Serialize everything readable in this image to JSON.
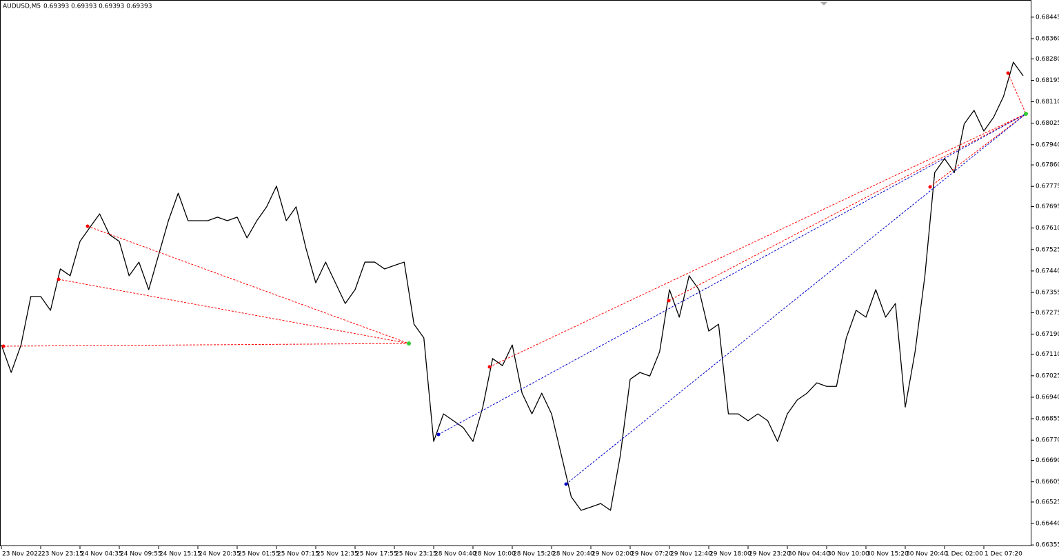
{
  "chart_data": {
    "type": "line",
    "title": "AUDUSD,M5",
    "subtitle": "0.69393 0.69393 0.69393 0.69393",
    "color": "#000000",
    "categories": [
      "23 Nov 2022",
      null,
      null,
      null,
      "23 Nov 23:15",
      null,
      null,
      null,
      "24 Nov 04:35",
      null,
      null,
      null,
      "24 Nov 09:55",
      null,
      null,
      null,
      "24 Nov 15:15",
      null,
      null,
      null,
      "24 Nov 20:35",
      null,
      null,
      null,
      "25 Nov 01:55",
      null,
      null,
      null,
      "25 Nov 07:15",
      null,
      null,
      null,
      "25 Nov 12:35",
      null,
      null,
      null,
      "25 Nov 17:55",
      null,
      null,
      null,
      "25 Nov 23:15",
      null,
      null,
      null,
      "28 Nov 04:40",
      null,
      null,
      null,
      "28 Nov 10:00",
      null,
      null,
      null,
      "28 Nov 15:20",
      null,
      null,
      null,
      "28 Nov 20:40",
      null,
      null,
      null,
      "29 Nov 02:00",
      null,
      null,
      null,
      "29 Nov 07:20",
      null,
      null,
      null,
      "29 Nov 12:40",
      null,
      null,
      null,
      "29 Nov 18:00",
      null,
      null,
      null,
      "29 Nov 23:20",
      null,
      null,
      null,
      "30 Nov 04:40",
      null,
      null,
      null,
      "30 Nov 10:00",
      null,
      null,
      null,
      "30 Nov 15:20",
      null,
      null,
      null,
      "30 Nov 20:40",
      null,
      null,
      null,
      "1 Dec 02:00",
      null,
      null,
      null,
      "1 Dec 07:20",
      null,
      null,
      null,
      null
    ],
    "values": [
      0.67147,
      0.67038,
      0.67147,
      0.67339,
      0.67339,
      0.67284,
      0.67448,
      0.67421,
      0.67557,
      0.67612,
      0.67666,
      0.67584,
      0.67557,
      0.67421,
      0.67475,
      0.67366,
      0.67503,
      0.67639,
      0.67748,
      0.67639,
      0.67639,
      0.67639,
      0.67653,
      0.67639,
      0.67653,
      0.67571,
      0.67639,
      0.67694,
      0.67776,
      0.67639,
      0.67694,
      0.6753,
      0.67393,
      0.67475,
      0.67393,
      0.67311,
      0.67366,
      0.67475,
      0.67475,
      0.67448,
      0.67462,
      0.67475,
      0.67229,
      0.67175,
      0.66765,
      0.66874,
      0.66847,
      0.6682,
      0.66765,
      0.66901,
      0.67093,
      0.67065,
      0.67147,
      0.66956,
      0.66874,
      0.66956,
      0.66874,
      0.6671,
      0.66546,
      0.66492,
      0.66505,
      0.66519,
      0.66492,
      0.6671,
      0.67011,
      0.67038,
      0.67024,
      0.6712,
      0.67366,
      0.67257,
      0.67421,
      0.67366,
      0.67202,
      0.67229,
      0.66874,
      0.66874,
      0.66847,
      0.66874,
      0.66847,
      0.66765,
      0.66874,
      0.66929,
      0.66956,
      0.66997,
      0.66983,
      0.66983,
      0.67175,
      0.67284,
      0.67257,
      0.67366,
      0.67257,
      0.67311,
      0.66901,
      0.6712,
      0.67421,
      0.6783,
      0.67885,
      0.6783,
      0.68022,
      0.68076,
      0.67994,
      0.68049,
      0.68131,
      0.68267,
      0.68213
    ],
    "ylim": [
      0.6635,
      0.68513
    ],
    "yticks": [
      0.68445,
      {
        "value": 0.6836,
        "label": "0.68360"
      },
      {
        "value": 0.6828,
        "label": "0.68280"
      },
      0.68195,
      {
        "value": 0.6811,
        "label": "0.68110"
      },
      0.68025,
      {
        "value": 0.6794,
        "label": "0.67940"
      },
      {
        "value": 0.6786,
        "label": "0.67860"
      },
      0.67775,
      0.67695,
      {
        "value": 0.6761,
        "label": "0.67610"
      },
      0.67525,
      {
        "value": 0.6744,
        "label": "0.67440"
      },
      0.67355,
      0.67275,
      {
        "value": 0.6719,
        "label": "0.67190"
      },
      {
        "value": 0.6711,
        "label": "0.67110"
      },
      0.67025,
      {
        "value": 0.6694,
        "label": "0.66940"
      },
      0.66855,
      {
        "value": 0.6677,
        "label": "0.66770"
      },
      {
        "value": 0.6669,
        "label": "0.66690"
      },
      0.66605,
      0.66525,
      {
        "value": 0.6644,
        "label": "0.66440"
      },
      0.66355
    ]
  }
}
